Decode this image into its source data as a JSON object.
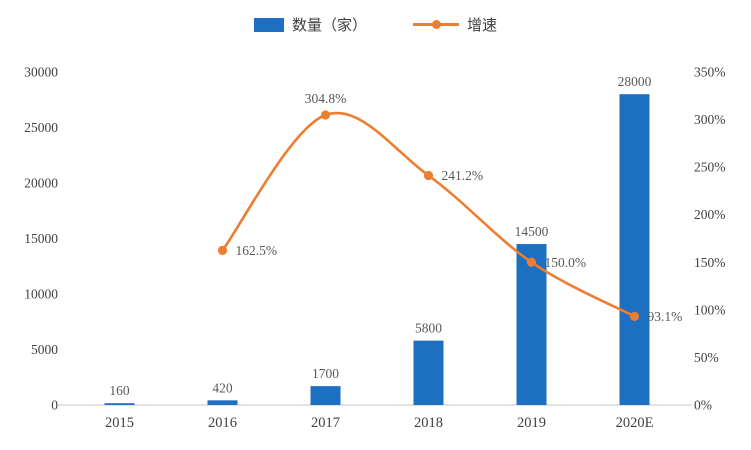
{
  "chart_data": {
    "type": "combo-bar-line",
    "categories": [
      "2015",
      "2016",
      "2017",
      "2018",
      "2019",
      "2020E"
    ],
    "series_bar": {
      "name": "数量（家）",
      "values": [
        160,
        420,
        1700,
        5800,
        14500,
        28000
      ],
      "labels": [
        "160",
        "420",
        "1700",
        "5800",
        "14500",
        "28000"
      ],
      "color": "#1d6fc2"
    },
    "series_line": {
      "name": "增速",
      "values_percent": [
        null,
        162.5,
        304.8,
        241.2,
        150.0,
        93.1
      ],
      "labels": [
        "",
        "162.5%",
        "304.8%",
        "241.2%",
        "150.0%",
        "93.1%"
      ],
      "label_placement": [
        "",
        "right",
        "above",
        "right",
        "right",
        "right"
      ],
      "color": "#ed7d31"
    },
    "left_axis": {
      "min": 0,
      "max": 30000,
      "step": 5000,
      "ticks": [
        "0",
        "5000",
        "10000",
        "15000",
        "20000",
        "25000",
        "30000"
      ]
    },
    "right_axis": {
      "min_percent": 0,
      "max_percent": 350,
      "step_percent": 50,
      "ticks": [
        "0%",
        "50%",
        "100%",
        "150%",
        "200%",
        "250%",
        "300%",
        "350%"
      ]
    },
    "legend_position": "top",
    "grid": false,
    "colors": {
      "bar": "#1d6fc2",
      "line": "#ed7d31",
      "axis_text": "#404040",
      "data_label_text": "#595959",
      "axis_line": "#c6c6c6"
    }
  }
}
